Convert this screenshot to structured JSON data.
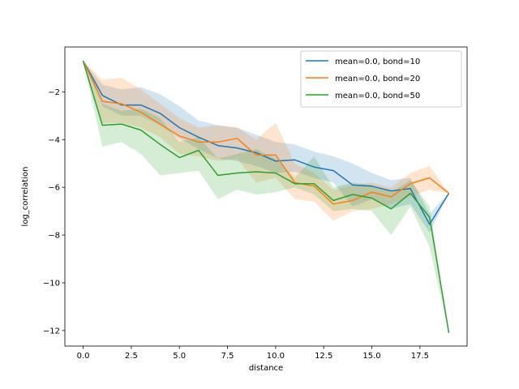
{
  "chart_data": {
    "type": "line",
    "xlabel": "distance",
    "ylabel": "log_correlation",
    "xlim": [
      -0.95,
      19.95
    ],
    "ylim": [
      -12.65,
      -0.12
    ],
    "xticks": [
      0,
      2.5,
      5,
      7.5,
      10,
      12.5,
      15,
      17.5
    ],
    "xtick_labels": [
      "0.0",
      "2.5",
      "5.0",
      "7.5",
      "10.0",
      "12.5",
      "15.0",
      "17.5"
    ],
    "yticks": [
      -12,
      -10,
      -8,
      -6,
      -4,
      -2
    ],
    "ytick_labels": [
      "−12",
      "−10",
      "−8",
      "−6",
      "−4",
      "−2"
    ],
    "legend_position": "top-right",
    "grid": false,
    "x": [
      0,
      1,
      2,
      3,
      4,
      5,
      6,
      7,
      8,
      9,
      10,
      11,
      12,
      13,
      14,
      15,
      16,
      17,
      18,
      19
    ],
    "series": [
      {
        "name": "mean=0.0, bond=10",
        "color": "#1f77b4",
        "values": [
          -0.7,
          -2.15,
          -2.55,
          -2.55,
          -2.9,
          -3.5,
          -3.9,
          -4.25,
          -4.35,
          -4.55,
          -4.9,
          -4.85,
          -5.15,
          -5.3,
          -5.9,
          -5.95,
          -6.15,
          -6.05,
          -7.55,
          -6.25
        ],
        "lower": [
          -0.7,
          -2.6,
          -3.0,
          -3.0,
          -3.4,
          -3.95,
          -4.4,
          -4.8,
          -4.9,
          -5.1,
          -5.4,
          -5.35,
          -5.6,
          -5.8,
          -6.8,
          -6.5,
          -6.9,
          -6.7,
          -7.9,
          -6.25
        ],
        "upper": [
          -0.7,
          -1.7,
          -1.9,
          -1.8,
          -2.1,
          -2.6,
          -3.2,
          -3.4,
          -3.5,
          -3.8,
          -4.1,
          -4.2,
          -4.5,
          -4.7,
          -5.0,
          -5.4,
          -5.7,
          -5.6,
          -7.1,
          -6.25
        ]
      },
      {
        "name": "mean=0.0, bond=20",
        "color": "#ff7f0e",
        "values": [
          -0.7,
          -2.4,
          -2.5,
          -2.85,
          -3.35,
          -3.85,
          -4.1,
          -4.1,
          -3.95,
          -4.65,
          -4.65,
          -5.8,
          -5.95,
          -6.7,
          -6.55,
          -6.2,
          -6.4,
          -5.85,
          -5.6,
          -6.25
        ],
        "lower": [
          -0.7,
          -3.3,
          -3.3,
          -3.5,
          -3.9,
          -4.6,
          -4.7,
          -4.9,
          -4.8,
          -5.8,
          -5.6,
          -6.5,
          -6.6,
          -7.4,
          -7.0,
          -6.9,
          -6.7,
          -6.4,
          -6.1,
          -6.25
        ],
        "upper": [
          -0.7,
          -1.5,
          -1.4,
          -1.9,
          -2.5,
          -3.1,
          -3.5,
          -3.4,
          -3.5,
          -4.0,
          -3.3,
          -5.0,
          -5.4,
          -6.1,
          -5.9,
          -5.8,
          -6.0,
          -5.4,
          -5.1,
          -6.25
        ]
      },
      {
        "name": "mean=0.0, bond=50",
        "color": "#2ca02c",
        "values": [
          -0.7,
          -3.4,
          -3.35,
          -3.6,
          -4.2,
          -4.75,
          -4.45,
          -5.5,
          -5.4,
          -5.35,
          -5.4,
          -5.85,
          -5.85,
          -6.55,
          -6.3,
          -6.45,
          -6.9,
          -6.25,
          -7.25,
          -12.1
        ],
        "lower": [
          -0.7,
          -4.3,
          -4.1,
          -4.6,
          -5.5,
          -5.4,
          -5.3,
          -6.5,
          -6.1,
          -6.3,
          -6.2,
          -6.0,
          -6.3,
          -7.0,
          -6.9,
          -7.0,
          -8.0,
          -6.8,
          -8.5,
          -12.1
        ],
        "upper": [
          -0.7,
          -2.5,
          -2.8,
          -2.7,
          -3.1,
          -4.1,
          -3.9,
          -4.8,
          -4.6,
          -4.4,
          -4.8,
          -5.6,
          -4.7,
          -6.0,
          -5.8,
          -5.9,
          -6.2,
          -5.7,
          -6.8,
          -12.1
        ]
      }
    ]
  }
}
